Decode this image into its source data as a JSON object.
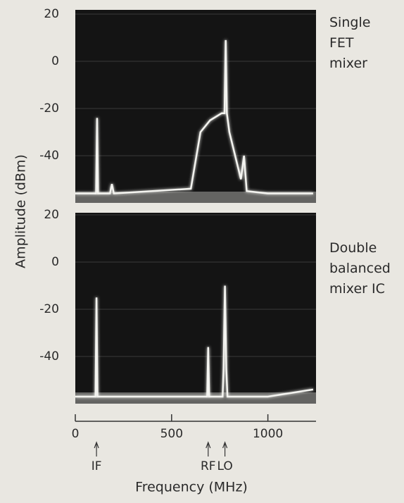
{
  "chart_data": [
    {
      "type": "line",
      "title": "Single FET mixer",
      "ylabel": "Amplitude (dBm)",
      "x": [
        0,
        100,
        108,
        113,
        118,
        180,
        190,
        200,
        600,
        650,
        700,
        760,
        775,
        781,
        787,
        800,
        860,
        876,
        890,
        1000,
        1235
      ],
      "values": [
        -56,
        -56,
        -56,
        -24,
        -56,
        -56,
        -52,
        -56,
        -54,
        -30,
        -25,
        -22,
        -22,
        9,
        -22,
        -30,
        -50,
        -40,
        -55,
        -56,
        -56
      ],
      "xlim": [
        0,
        1250
      ],
      "ylim": [
        -60,
        20
      ],
      "yticks": [
        20,
        0,
        -20,
        -40
      ],
      "grid": true,
      "color": "#f4f4f0"
    },
    {
      "type": "line",
      "title": "Double balanced mixer IC",
      "xlabel": "Frequency (MHz)",
      "x": [
        0,
        100,
        105,
        110,
        115,
        200,
        680,
        685,
        690,
        695,
        765,
        770,
        777,
        784,
        790,
        1000,
        1235
      ],
      "values": [
        -57,
        -57,
        -57,
        -15,
        -57,
        -57,
        -57,
        -57,
        -36,
        -57,
        -57,
        -45,
        -10,
        -45,
        -57,
        -57,
        -54
      ],
      "xlim": [
        0,
        1250
      ],
      "ylim": [
        -60,
        20
      ],
      "yticks": [
        20,
        0,
        -20,
        -40
      ],
      "xticks": [
        0,
        500,
        1000
      ],
      "grid": true,
      "color": "#f4f4f0",
      "annotations": [
        {
          "text": "IF",
          "x": 110
        },
        {
          "text": "RF",
          "x": 690
        },
        {
          "text": "LO",
          "x": 777
        }
      ]
    }
  ]
}
